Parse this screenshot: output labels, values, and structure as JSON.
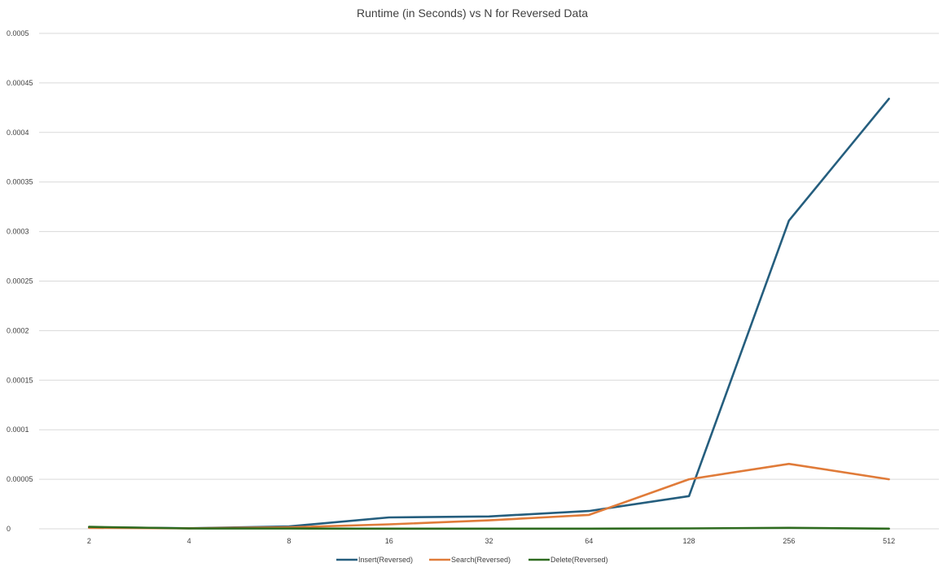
{
  "chart_data": {
    "type": "line",
    "title": "Runtime (in Seconds) vs N for Reversed Data",
    "xlabel": "",
    "ylabel": "",
    "categories": [
      "2",
      "4",
      "8",
      "16",
      "32",
      "64",
      "128",
      "256",
      "512"
    ],
    "ylim": [
      0,
      0.0005
    ],
    "yticks": [
      "0",
      "0.00005",
      "0.0001",
      "0.00015",
      "0.0002",
      "0.00025",
      "0.0003",
      "0.00035",
      "0.0004",
      "0.00045",
      "0.0005"
    ],
    "grid": true,
    "legend_position": "bottom",
    "series": [
      {
        "name": "Insert(Reversed)",
        "color": "#255e7e",
        "values": [
          1.5e-06,
          6e-07,
          2.5e-06,
          1.15e-05,
          1.25e-05,
          1.8e-05,
          3.3e-05,
          0.000311,
          0.000434
        ]
      },
      {
        "name": "Search(Reversed)",
        "color": "#e07b39",
        "values": [
          1e-06,
          5e-07,
          1.5e-06,
          4.5e-06,
          8.5e-06,
          1.4e-05,
          5e-05,
          6.55e-05,
          5e-05
        ]
      },
      {
        "name": "Delete(Reversed)",
        "color": "#2e6b1f",
        "values": [
          2e-06,
          4e-07,
          3e-07,
          2e-07,
          2e-07,
          2e-07,
          4e-07,
          1e-06,
          2e-07
        ]
      }
    ]
  }
}
